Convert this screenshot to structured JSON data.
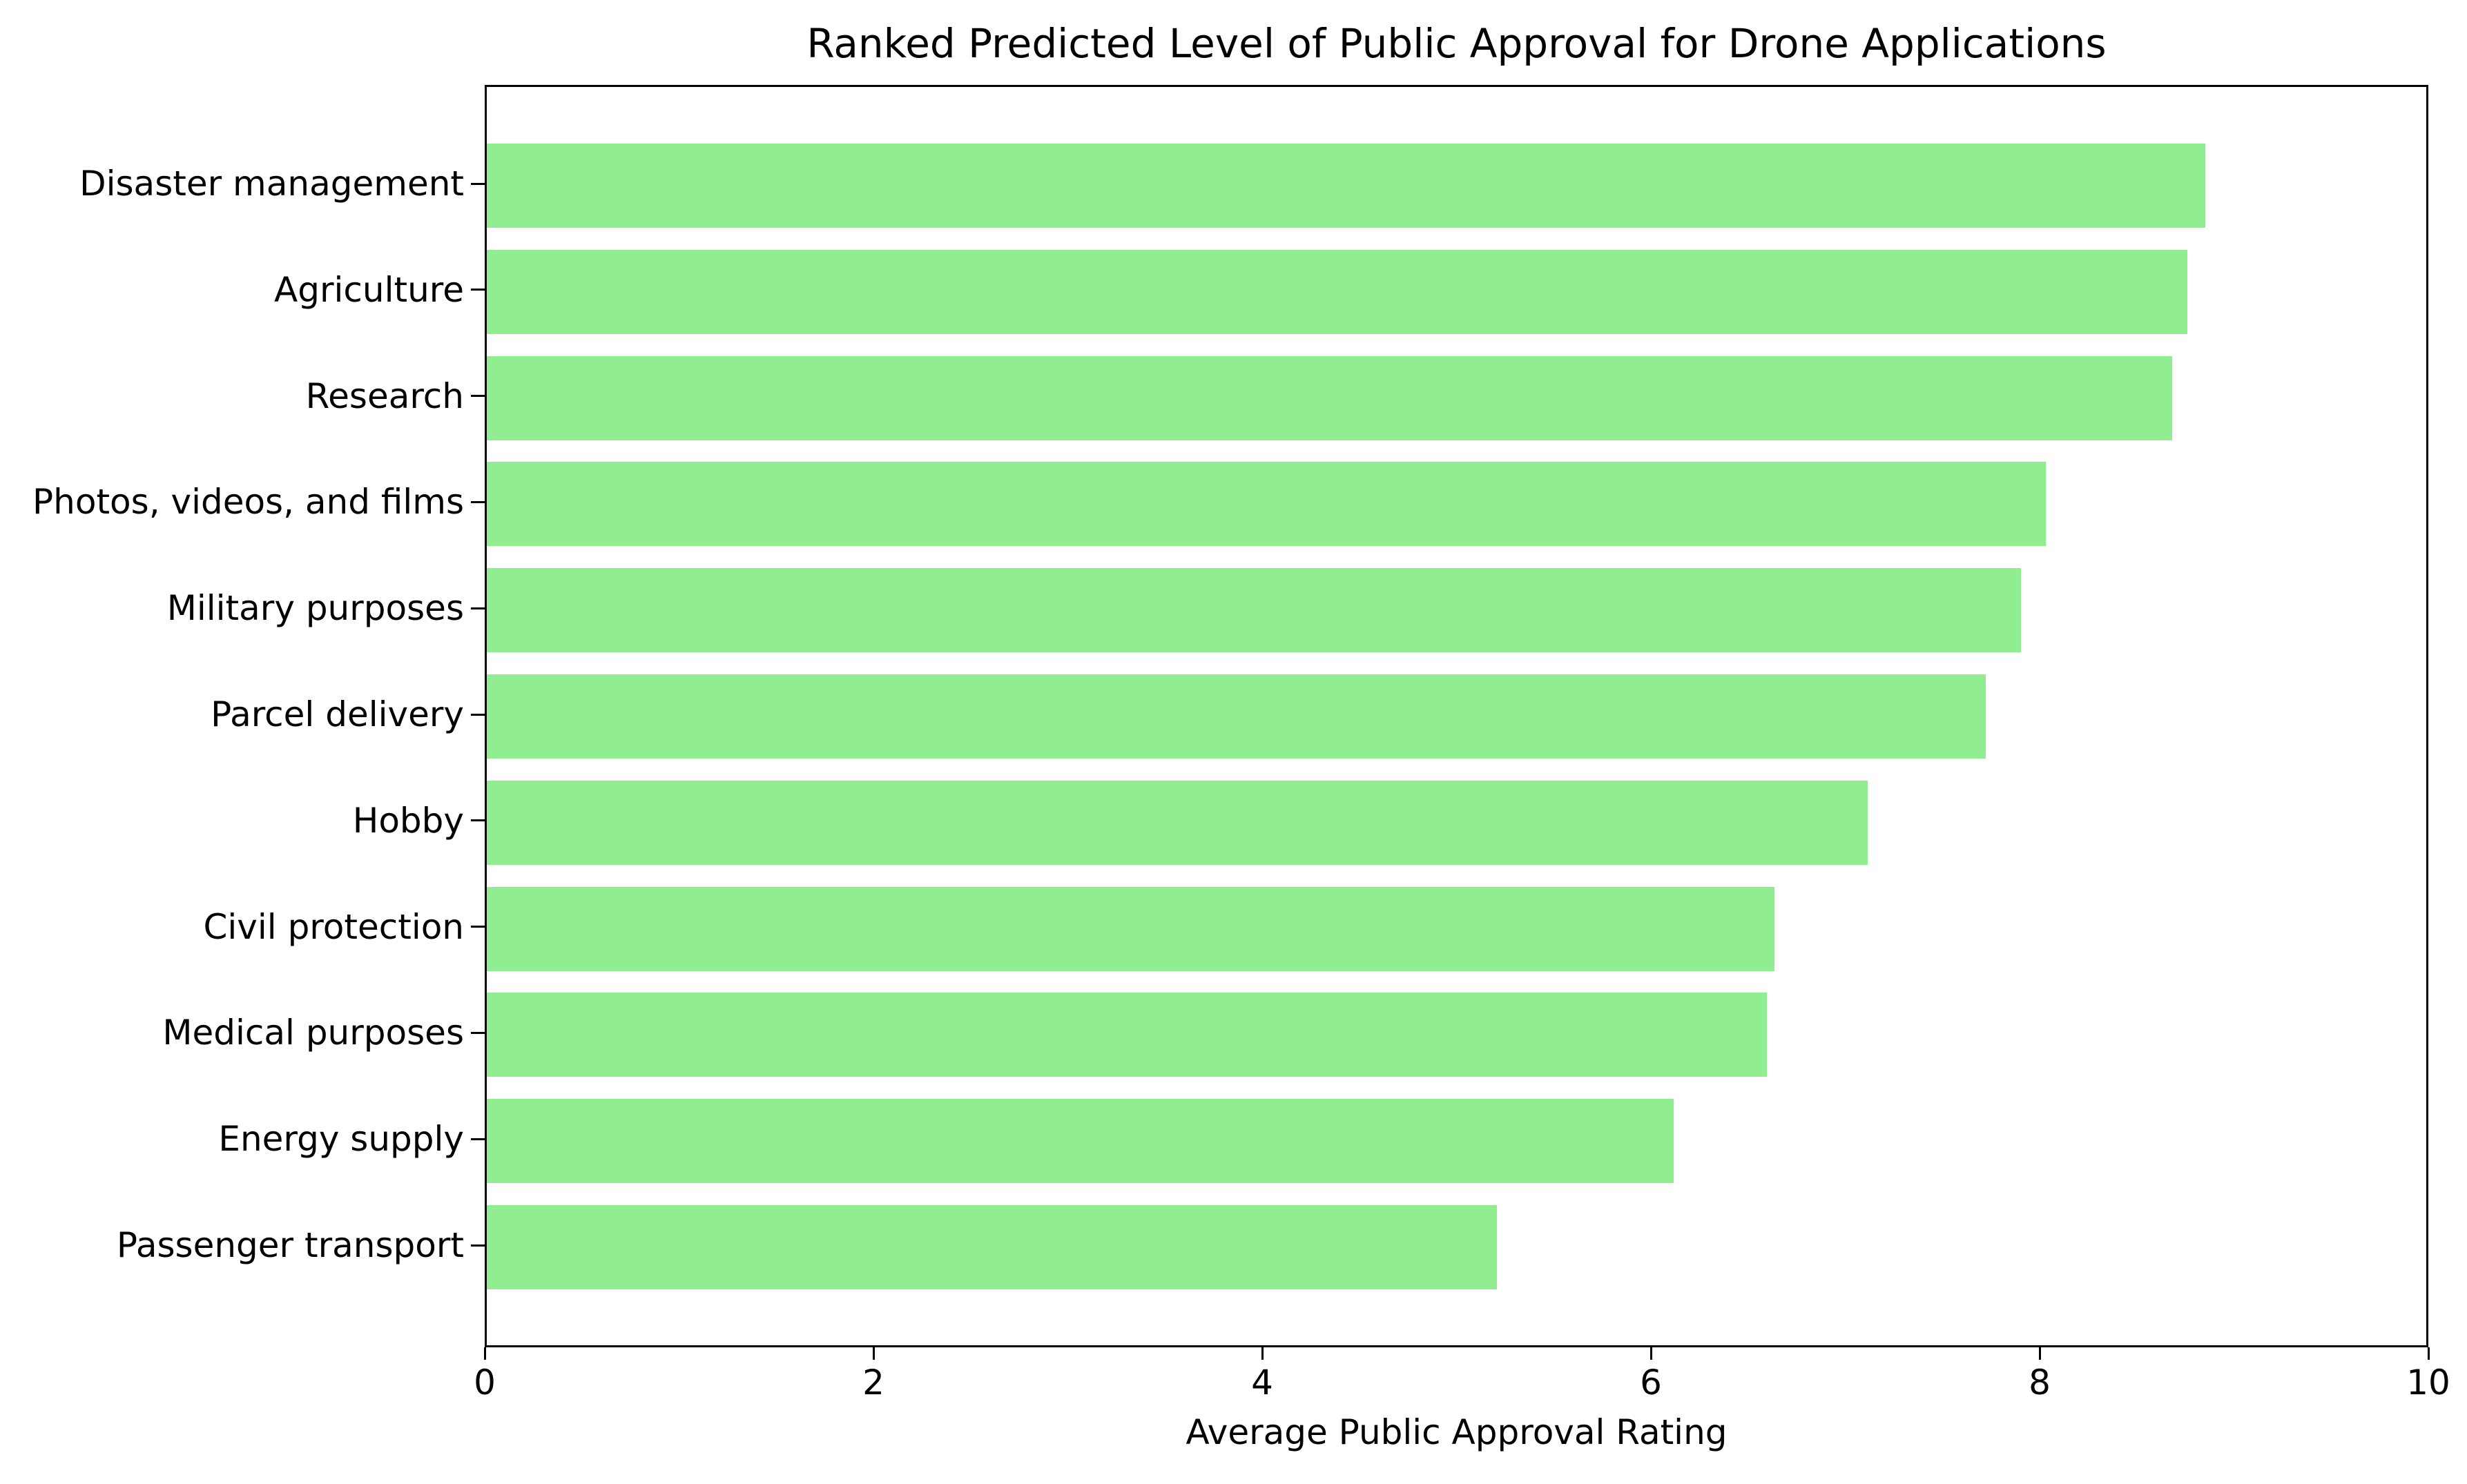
{
  "chart_data": {
    "type": "bar",
    "orientation": "horizontal",
    "title": "Ranked Predicted Level of Public Approval for Drone Applications",
    "xlabel": "Average Public Approval Rating",
    "ylabel": "",
    "categories": [
      "Disaster management",
      "Agriculture",
      "Research",
      "Photos, videos, and films",
      "Military purposes",
      "Parcel delivery",
      "Hobby",
      "Civil protection",
      "Medical purposes",
      "Energy supply",
      "Passenger transport"
    ],
    "values": [
      8.86,
      8.77,
      8.69,
      8.04,
      7.91,
      7.73,
      7.12,
      6.64,
      6.6,
      6.12,
      5.21
    ],
    "xlim": [
      0,
      10
    ],
    "xticks": [
      0,
      2,
      4,
      6,
      8,
      10
    ],
    "bar_color": "#90EE90",
    "background_color": "#FFFFFF",
    "axis_color": "#000000",
    "grid": false,
    "legend": null
  }
}
